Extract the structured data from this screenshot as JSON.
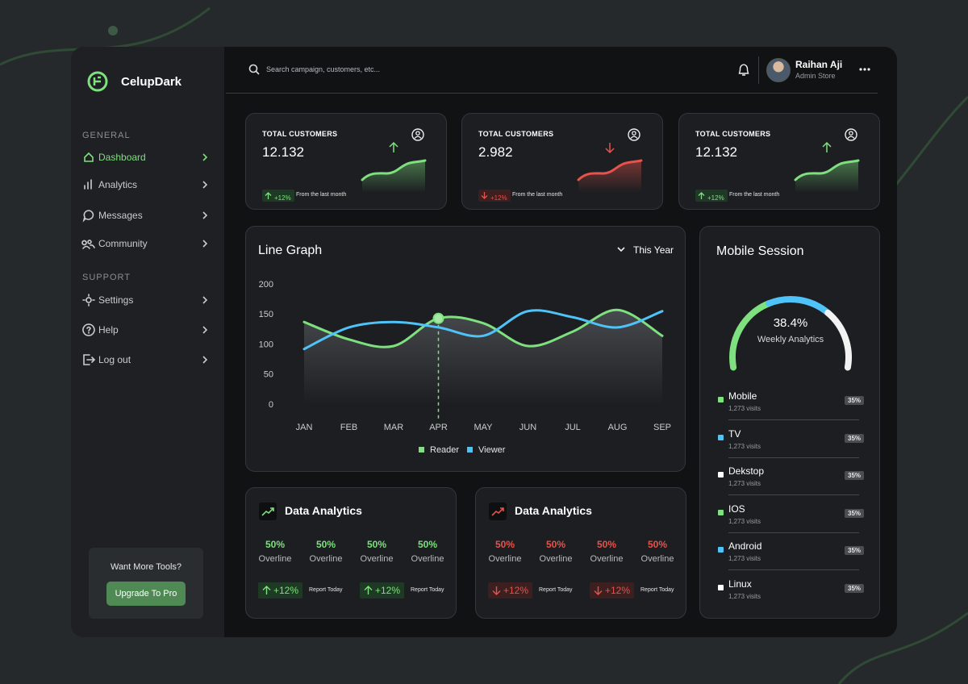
{
  "brand": "CelupDark",
  "sidebar": {
    "sections": [
      {
        "label": "GENERAL",
        "items": [
          "Dashboard",
          "Analytics",
          "Messages",
          "Community"
        ]
      },
      {
        "label": "SUPPORT",
        "items": [
          "Settings",
          "Help",
          "Log out"
        ]
      }
    ],
    "promo": {
      "text": "Want More Tools?",
      "button": "Upgrade To Pro"
    }
  },
  "header": {
    "search_placeholder": "Search campaign, customers, etc...",
    "user": {
      "name": "Raihan Aji",
      "role": "Admin Store"
    }
  },
  "stat_cards": [
    {
      "title": "TOTAL CUSTOMERS",
      "value": "12.132",
      "change": "+12%",
      "trend": "up",
      "note": "From the last month"
    },
    {
      "title": "TOTAL CUSTOMERS",
      "value": "2.982",
      "change": "+12%",
      "trend": "down",
      "note": "From the last month"
    },
    {
      "title": "TOTAL CUSTOMERS",
      "value": "12.132",
      "change": "+12%",
      "trend": "up",
      "note": "From the last month"
    }
  ],
  "chart_data": {
    "type": "line",
    "title": "Line Graph",
    "filter": "This Year",
    "categories": [
      "JAN",
      "FEB",
      "MAR",
      "APR",
      "MAY",
      "JUN",
      "JUL",
      "AUG",
      "SEP"
    ],
    "series": [
      {
        "name": "Reader",
        "color": "#7ee07e",
        "values": [
          138,
          109,
          98,
          144,
          136,
          98,
          122,
          158,
          115
        ]
      },
      {
        "name": "Viewer",
        "color": "#4fc3f7",
        "values": [
          93,
          129,
          138,
          129,
          115,
          156,
          146,
          129,
          156
        ]
      }
    ],
    "ylim": [
      0,
      200
    ],
    "yticks": [
      0,
      50,
      100,
      150,
      200
    ],
    "highlight": {
      "series": 0,
      "index": 3
    }
  },
  "mobile_session": {
    "title": "Mobile Session",
    "value": "38.4%",
    "label": "Weekly Analytics",
    "items": [
      {
        "name": "Mobile",
        "visits": "1,273 visits",
        "share": "35%",
        "color": "#7ee07e"
      },
      {
        "name": "TV",
        "visits": "1,273 visits",
        "share": "35%",
        "color": "#4fc3f7"
      },
      {
        "name": "Dekstop",
        "visits": "1,273 visits",
        "share": "35%",
        "color": "#ffffff"
      },
      {
        "name": "IOS",
        "visits": "1,273 visits",
        "share": "35%",
        "color": "#7ee07e"
      },
      {
        "name": "Android",
        "visits": "1,273 visits",
        "share": "35%",
        "color": "#4fc3f7"
      },
      {
        "name": "Linux",
        "visits": "1,273 visits",
        "share": "35%",
        "color": "#ffffff"
      }
    ]
  },
  "data_analytics": [
    {
      "title": "Data Analytics",
      "trend": "up",
      "metrics": [
        {
          "value": "50%",
          "label": "Overline"
        },
        {
          "value": "50%",
          "label": "Overline"
        },
        {
          "value": "50%",
          "label": "Overline"
        },
        {
          "value": "50%",
          "label": "Overline"
        }
      ],
      "reports": [
        {
          "change": "+12%",
          "note": "Report Today"
        },
        {
          "change": "+12%",
          "note": "Report Today"
        }
      ]
    },
    {
      "title": "Data Analytics",
      "trend": "down",
      "metrics": [
        {
          "value": "50%",
          "label": "Overline"
        },
        {
          "value": "50%",
          "label": "Overline"
        },
        {
          "value": "50%",
          "label": "Overline"
        },
        {
          "value": "50%",
          "label": "Overline"
        }
      ],
      "reports": [
        {
          "change": "+12%",
          "note": "Report Today"
        },
        {
          "change": "+12%",
          "note": "Report Today"
        }
      ]
    }
  ]
}
